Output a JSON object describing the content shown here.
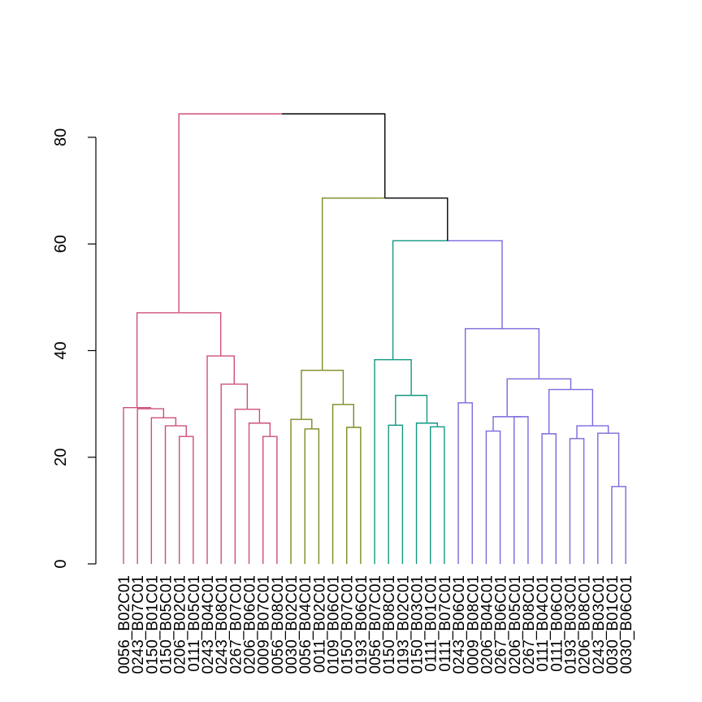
{
  "chart_data": {
    "type": "dendrogram",
    "title": "",
    "xlabel": "",
    "ylabel": "",
    "ylim": [
      0,
      84.4
    ],
    "yticks": [
      0,
      20,
      40,
      60,
      80
    ],
    "colors": {
      "cluster1": "#CD4F7A",
      "cluster2": "#7F8A1E",
      "cluster3": "#129982",
      "cluster4": "#7B68DD",
      "root": "#000000"
    },
    "leaves": [
      "0056_B02C01",
      "0243_B07C01",
      "0150_B01C01",
      "0150_B05C01",
      "0206_B02C01",
      "0111_B05C01",
      "0243_B04C01",
      "0243_B08C01",
      "0267_B07C01",
      "0206_B06C01",
      "0009_B07C01",
      "0056_B08C01",
      "0030_B02C01",
      "0056_B04C01",
      "0011_B02C01",
      "0109_B06C01",
      "0150_B07C01",
      "0193_B06C01",
      "0056_B07C01",
      "0150_B08C01",
      "0193_B02C01",
      "0150_B03C01",
      "0111_B01C01",
      "0111_B07C01",
      "0243_B06C01",
      "0009_B08C01",
      "0206_B04C01",
      "0267_B06C01",
      "0206_B05C01",
      "0267_B08C01",
      "0111_B04C01",
      "0111_B06C01",
      "0193_B03C01",
      "0206_B08C01",
      "0243_B03C01",
      "0030_B01C01",
      "0030_B06C01"
    ],
    "leaf_clusters": [
      1,
      1,
      1,
      1,
      1,
      1,
      1,
      1,
      1,
      1,
      1,
      1,
      2,
      2,
      2,
      2,
      2,
      2,
      3,
      3,
      3,
      3,
      3,
      3,
      4,
      4,
      4,
      4,
      4,
      4,
      4,
      4,
      4,
      4,
      4,
      4,
      4
    ],
    "merges": [
      {
        "id": "p1",
        "left": 4,
        "right": 5,
        "height": 23.9,
        "color": "cluster1"
      },
      {
        "id": "p2",
        "left": 3,
        "right": "p1",
        "height": 25.9,
        "color": "cluster1"
      },
      {
        "id": "p3",
        "left": 2,
        "right": "p2",
        "height": 27.4,
        "color": "cluster1"
      },
      {
        "id": "p4",
        "left": 1,
        "right": "p3",
        "height": 29.1,
        "color": "cluster1"
      },
      {
        "id": "p5",
        "left": 0,
        "right": "p4",
        "height": 29.3,
        "color": "cluster1"
      },
      {
        "id": "p6",
        "left": 10,
        "right": 11,
        "height": 23.9,
        "color": "cluster1"
      },
      {
        "id": "p7",
        "left": 9,
        "right": "p6",
        "height": 26.4,
        "color": "cluster1"
      },
      {
        "id": "p8",
        "left": 8,
        "right": "p7",
        "height": 29.0,
        "color": "cluster1"
      },
      {
        "id": "p9",
        "left": 7,
        "right": "p8",
        "height": 33.7,
        "color": "cluster1"
      },
      {
        "id": "p10",
        "left": 6,
        "right": "p9",
        "height": 39.0,
        "color": "cluster1"
      },
      {
        "id": "p11",
        "left": "p5",
        "right": "p10",
        "height": 47.1,
        "color": "cluster1"
      },
      {
        "id": "o1",
        "left": 13,
        "right": 14,
        "height": 25.3,
        "color": "cluster2"
      },
      {
        "id": "o2",
        "left": 12,
        "right": "o1",
        "height": 27.1,
        "color": "cluster2"
      },
      {
        "id": "o3",
        "left": 16,
        "right": 17,
        "height": 25.6,
        "color": "cluster2"
      },
      {
        "id": "o4",
        "left": 15,
        "right": "o3",
        "height": 29.9,
        "color": "cluster2"
      },
      {
        "id": "o5",
        "left": "o2",
        "right": "o4",
        "height": 36.3,
        "color": "cluster2"
      },
      {
        "id": "t1",
        "left": 19,
        "right": 20,
        "height": 26.0,
        "color": "cluster3"
      },
      {
        "id": "t2",
        "left": 22,
        "right": 23,
        "height": 25.7,
        "color": "cluster3"
      },
      {
        "id": "t3",
        "left": 21,
        "right": "t2",
        "height": 26.4,
        "color": "cluster3"
      },
      {
        "id": "t4",
        "left": "t1",
        "right": "t3",
        "height": 31.6,
        "color": "cluster3"
      },
      {
        "id": "t5",
        "left": 18,
        "right": "t4",
        "height": 38.3,
        "color": "cluster3"
      },
      {
        "id": "u1",
        "left": 24,
        "right": 25,
        "height": 30.2,
        "color": "cluster4"
      },
      {
        "id": "u2",
        "left": 26,
        "right": 27,
        "height": 24.9,
        "color": "cluster4"
      },
      {
        "id": "u3",
        "left": 28,
        "right": 29,
        "height": 27.6,
        "color": "cluster4"
      },
      {
        "id": "u4",
        "left": "u2",
        "right": "u3",
        "height": 27.6,
        "color": "cluster4"
      },
      {
        "id": "u5",
        "left": 30,
        "right": 31,
        "height": 24.4,
        "color": "cluster4"
      },
      {
        "id": "u6",
        "left": 32,
        "right": 33,
        "height": 23.5,
        "color": "cluster4"
      },
      {
        "id": "u7",
        "left": 35,
        "right": 36,
        "height": 14.5,
        "color": "cluster4"
      },
      {
        "id": "u8",
        "left": 34,
        "right": "u7",
        "height": 24.5,
        "color": "cluster4"
      },
      {
        "id": "u9",
        "left": "u6",
        "right": "u8",
        "height": 25.9,
        "color": "cluster4"
      },
      {
        "id": "u10",
        "left": "u5",
        "right": "u9",
        "height": 32.7,
        "color": "cluster4"
      },
      {
        "id": "u11",
        "left": "u4",
        "right": "u10",
        "height": 34.7,
        "color": "cluster4"
      },
      {
        "id": "u12",
        "left": "u1",
        "right": "u11",
        "height": 44.1,
        "color": "cluster4"
      },
      {
        "id": "r1",
        "left": "t5",
        "right": "u12",
        "height": 60.6,
        "color": "split"
      },
      {
        "id": "r2",
        "left": "o5",
        "right": "r1",
        "height": 68.6,
        "color": "split"
      },
      {
        "id": "r3",
        "left": "p11",
        "right": "r2",
        "height": 84.4,
        "color": "split"
      }
    ]
  },
  "axis": {
    "tick_labels": [
      "0",
      "20",
      "40",
      "60",
      "80"
    ]
  }
}
